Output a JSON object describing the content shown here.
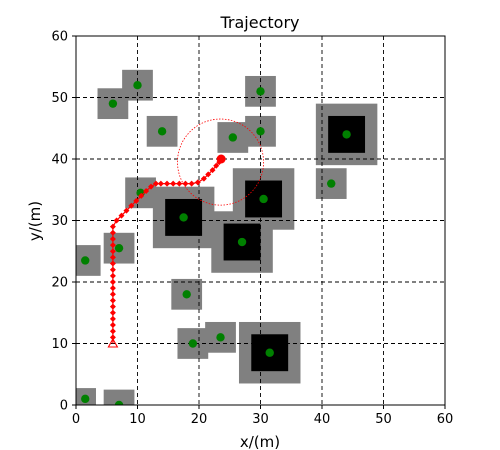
{
  "chart_data": {
    "type": "scatter",
    "title": "Trajectory",
    "xlabel": "x/(m)",
    "ylabel": "y/(m)",
    "xlim": [
      0,
      60
    ],
    "ylim": [
      0,
      60
    ],
    "xticks": [
      "0",
      "10",
      "20",
      "30",
      "40",
      "50",
      "60"
    ],
    "yticks": [
      "0",
      "10",
      "20",
      "30",
      "40",
      "50",
      "60"
    ],
    "grid": true,
    "grid_style": "dashed",
    "colors": {
      "obstacle_core": "#000000",
      "obstacle_margin": "#808080",
      "obstacle_center": "#008000",
      "trajectory": "#ff0000"
    },
    "obstacles": [
      {
        "cx": 1.5,
        "cy": 23.5,
        "core": 0,
        "margin": 5
      },
      {
        "cx": 7,
        "cy": 25.5,
        "core": 0,
        "margin": 5
      },
      {
        "cx": 10.5,
        "cy": 34.5,
        "core": 0,
        "margin": 5
      },
      {
        "cx": 14,
        "cy": 44.5,
        "core": 0,
        "margin": 5
      },
      {
        "cx": 6,
        "cy": 49,
        "core": 0,
        "margin": 5
      },
      {
        "cx": 10,
        "cy": 52,
        "core": 0,
        "margin": 5
      },
      {
        "cx": 18,
        "cy": 18,
        "core": 0,
        "margin": 5
      },
      {
        "cx": 19,
        "cy": 10,
        "core": 0,
        "margin": 5
      },
      {
        "cx": 23.5,
        "cy": 11,
        "core": 0,
        "margin": 5
      },
      {
        "cx": 25.5,
        "cy": 43.5,
        "core": 0,
        "margin": 5
      },
      {
        "cx": 30,
        "cy": 44.5,
        "core": 0,
        "margin": 5
      },
      {
        "cx": 30,
        "cy": 51,
        "core": 0,
        "margin": 5
      },
      {
        "cx": 41.5,
        "cy": 36,
        "core": 0,
        "margin": 5
      },
      {
        "cx": 1.5,
        "cy": 1,
        "core": 0,
        "margin": 3.5
      },
      {
        "cx": 7,
        "cy": 0,
        "core": 0,
        "margin": 5
      },
      {
        "cx": 17.5,
        "cy": 30.5,
        "core": 6,
        "margin": 10
      },
      {
        "cx": 27,
        "cy": 26.5,
        "core": 6,
        "margin": 10
      },
      {
        "cx": 30.5,
        "cy": 33.5,
        "core": 6,
        "margin": 10
      },
      {
        "cx": 44,
        "cy": 44,
        "core": 6,
        "margin": 10
      },
      {
        "cx": 31.5,
        "cy": 8.5,
        "core": 6,
        "margin": 10
      }
    ],
    "trajectory": {
      "x": [
        6,
        6,
        6,
        6,
        6,
        6,
        6,
        6,
        6,
        6,
        6,
        6,
        6,
        6,
        6,
        6,
        6,
        6,
        6,
        6,
        6.6,
        7.4,
        8.2,
        9,
        9.8,
        10.6,
        11.4,
        12.2,
        13,
        13.8,
        14.8,
        15.8,
        16.8,
        17.8,
        18.8,
        19.8,
        20.8,
        21.5,
        22.2,
        22.8,
        23.3,
        23.6
      ],
      "y": [
        10,
        11,
        12,
        13,
        14,
        15,
        16,
        17,
        18,
        19,
        20,
        21,
        22,
        23,
        24,
        25,
        26,
        27,
        28,
        29,
        30,
        30.8,
        31.6,
        32.4,
        33.2,
        34,
        34.8,
        35.5,
        36,
        36,
        36,
        36,
        36,
        36,
        36,
        36.2,
        36.8,
        37.5,
        38.2,
        38.9,
        39.5,
        40
      ],
      "start": {
        "x": 6,
        "y": 10
      },
      "goal": {
        "x": 23.6,
        "y": 40
      }
    },
    "goal_circle": {
      "cx": 23.5,
      "cy": 39.5,
      "r": 7
    }
  }
}
